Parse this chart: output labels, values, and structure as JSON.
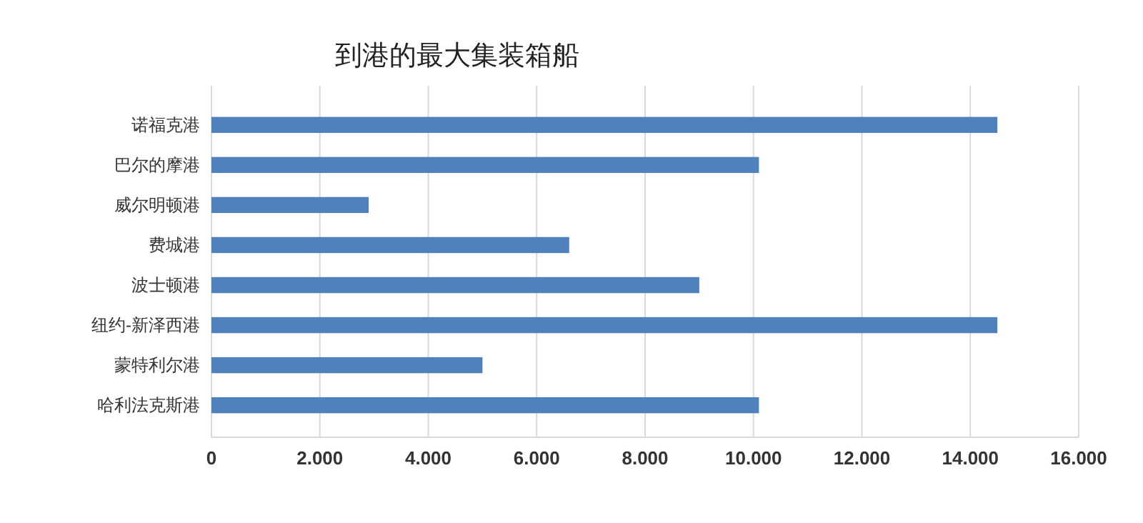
{
  "chart_data": {
    "type": "bar",
    "orientation": "horizontal",
    "title": "到港的最大集装箱船",
    "categories": [
      "诺福克港",
      "巴尔的摩港",
      "威尔明顿港",
      "费城港",
      "波士顿港",
      "纽约-新泽西港",
      "蒙特利尔港",
      "哈利法克斯港"
    ],
    "values": [
      14500,
      10100,
      2900,
      6600,
      9000,
      14500,
      5000,
      10100
    ],
    "color": "#4f81bd",
    "xlim": [
      0,
      16000
    ],
    "xticks": [
      0,
      {
        "value": 2000,
        "label": "2.000"
      },
      {
        "value": 4000,
        "label": "4.000"
      },
      {
        "value": 6000,
        "label": "6.000"
      },
      {
        "value": 8000,
        "label": "8.000"
      },
      {
        "value": 10000,
        "label": "10.000"
      },
      {
        "value": 12000,
        "label": "12.000"
      },
      {
        "value": 14000,
        "label": "14.000"
      },
      {
        "value": 16000,
        "label": "16.000"
      }
    ],
    "grid": "x"
  }
}
